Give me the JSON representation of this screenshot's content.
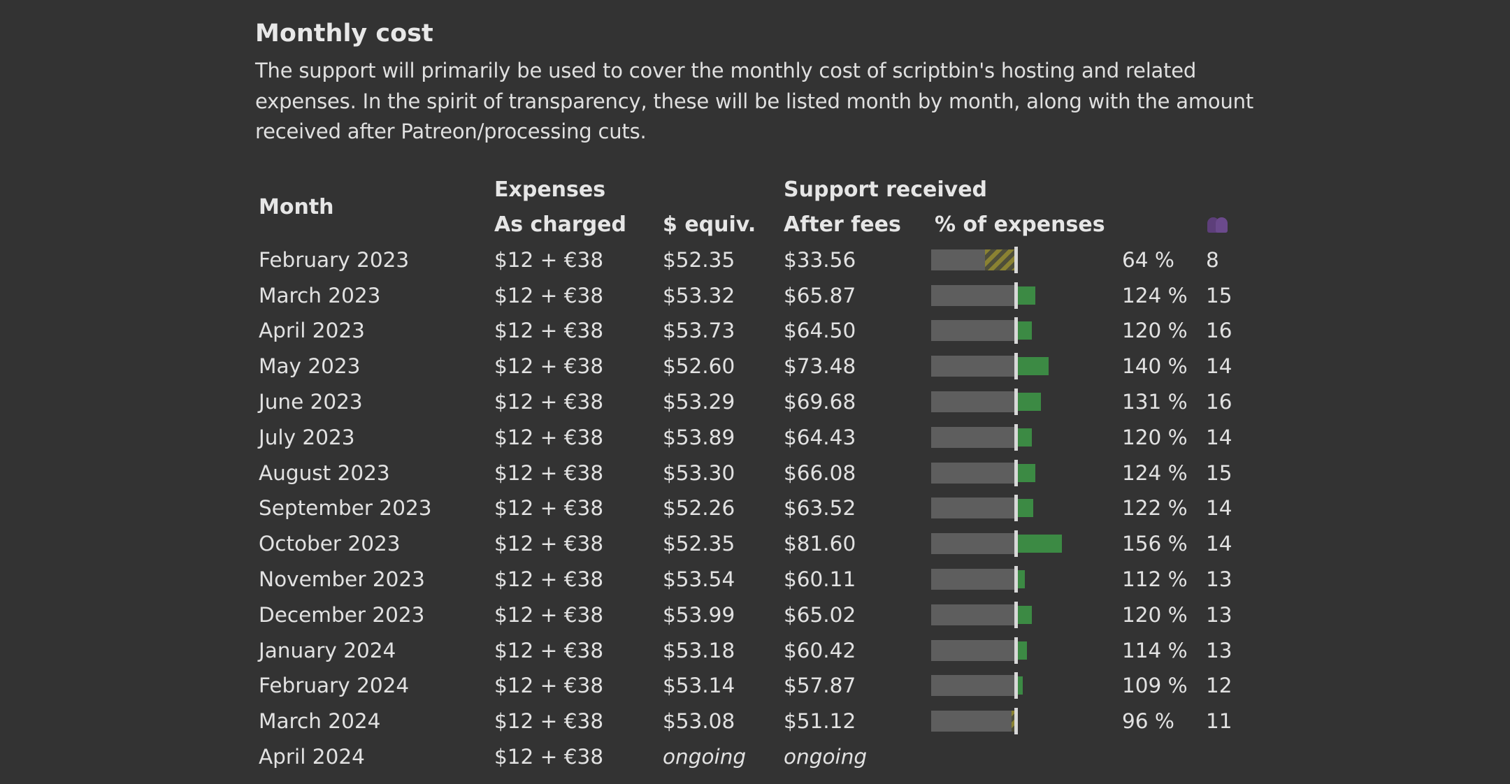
{
  "section": {
    "title": "Monthly cost",
    "intro": "The support will primarily be used to cover the monthly cost of scriptbin's hosting and related expenses. In the spirit of transparency, these will be listed month by month, along with the amount received after Patreon/processing cuts."
  },
  "table": {
    "headers": {
      "month": "Month",
      "expenses": "Expenses",
      "support_received": "Support received",
      "as_charged": "As charged",
      "usd_equiv": "$ equiv.",
      "after_fees": "After fees",
      "pct_of_expenses": "% of expenses",
      "patrons_icon": "patrons-icon"
    },
    "rows": [
      {
        "month": "February 2023",
        "charged": "$12 + €38",
        "equiv": "$52.35",
        "after_fees": "$33.56",
        "pct_label": "64 %",
        "pct": 64,
        "patrons": "8"
      },
      {
        "month": "March 2023",
        "charged": "$12 + €38",
        "equiv": "$53.32",
        "after_fees": "$65.87",
        "pct_label": "124 %",
        "pct": 124,
        "patrons": "15"
      },
      {
        "month": "April 2023",
        "charged": "$12 + €38",
        "equiv": "$53.73",
        "after_fees": "$64.50",
        "pct_label": "120 %",
        "pct": 120,
        "patrons": "16"
      },
      {
        "month": "May 2023",
        "charged": "$12 + €38",
        "equiv": "$52.60",
        "after_fees": "$73.48",
        "pct_label": "140 %",
        "pct": 140,
        "patrons": "14"
      },
      {
        "month": "June 2023",
        "charged": "$12 + €38",
        "equiv": "$53.29",
        "after_fees": "$69.68",
        "pct_label": "131 %",
        "pct": 131,
        "patrons": "16"
      },
      {
        "month": "July 2023",
        "charged": "$12 + €38",
        "equiv": "$53.89",
        "after_fees": "$64.43",
        "pct_label": "120 %",
        "pct": 120,
        "patrons": "14"
      },
      {
        "month": "August 2023",
        "charged": "$12 + €38",
        "equiv": "$53.30",
        "after_fees": "$66.08",
        "pct_label": "124 %",
        "pct": 124,
        "patrons": "15"
      },
      {
        "month": "September 2023",
        "charged": "$12 + €38",
        "equiv": "$52.26",
        "after_fees": "$63.52",
        "pct_label": "122 %",
        "pct": 122,
        "patrons": "14"
      },
      {
        "month": "October 2023",
        "charged": "$12 + €38",
        "equiv": "$52.35",
        "after_fees": "$81.60",
        "pct_label": "156 %",
        "pct": 156,
        "patrons": "14"
      },
      {
        "month": "November 2023",
        "charged": "$12 + €38",
        "equiv": "$53.54",
        "after_fees": "$60.11",
        "pct_label": "112 %",
        "pct": 112,
        "patrons": "13"
      },
      {
        "month": "December 2023",
        "charged": "$12 + €38",
        "equiv": "$53.99",
        "after_fees": "$65.02",
        "pct_label": "120 %",
        "pct": 120,
        "patrons": "13"
      },
      {
        "month": "January 2024",
        "charged": "$12 + €38",
        "equiv": "$53.18",
        "after_fees": "$60.42",
        "pct_label": "114 %",
        "pct": 114,
        "patrons": "13"
      },
      {
        "month": "February 2024",
        "charged": "$12 + €38",
        "equiv": "$53.14",
        "after_fees": "$57.87",
        "pct_label": "109 %",
        "pct": 109,
        "patrons": "12"
      },
      {
        "month": "March 2024",
        "charged": "$12 + €38",
        "equiv": "$53.08",
        "after_fees": "$51.12",
        "pct_label": "96 %",
        "pct": 96,
        "patrons": "11"
      }
    ],
    "ongoing_row": {
      "month": "April 2024",
      "charged": "$12 + €38",
      "equiv": "ongoing",
      "after_fees": "ongoing"
    }
  },
  "colors": {
    "background": "#333333",
    "bar_base": "#5e5e5e",
    "bar_over": "#3c8a44",
    "bar_short_stripe": "#8a8232",
    "patrons_icon": "#5d3f7a"
  }
}
